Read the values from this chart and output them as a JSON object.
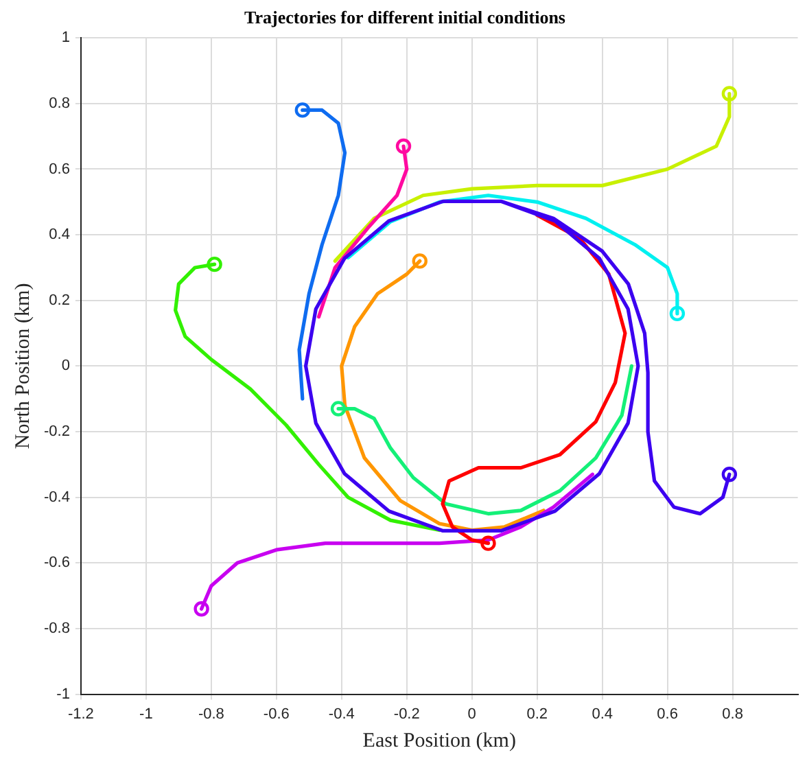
{
  "chart_data": {
    "type": "line",
    "title": "Trajectories for different initial conditions",
    "xlabel": "East Position (km)",
    "ylabel": "North Position (km)",
    "xlim": [
      -1.2,
      1
    ],
    "xticks": [
      -1.2,
      -1,
      -0.8,
      -0.6,
      -0.4,
      -0.2,
      0,
      0.2,
      0.4,
      0.6,
      0.8
    ],
    "ylim": [
      -1,
      1
    ],
    "yticks": [
      -1,
      -0.8,
      -0.6,
      -0.4,
      -0.2,
      0,
      0.2,
      0.4,
      0.6,
      0.8,
      1
    ],
    "grid": true,
    "line_style": "solid",
    "legend": false,
    "series": [
      {
        "color": "#32f000",
        "x": [
          -0.79,
          -0.85,
          -0.9,
          -0.91,
          -0.88,
          -0.8,
          -0.68,
          -0.57,
          -0.47,
          -0.38,
          -0.25,
          -0.1
        ],
        "values": [
          0.31,
          0.3,
          0.25,
          0.17,
          0.09,
          0.02,
          -0.07,
          -0.18,
          -0.3,
          -0.4,
          -0.47,
          -0.5
        ]
      },
      {
        "color": "#ff9600",
        "x": [
          -0.16,
          -0.2,
          -0.29,
          -0.36,
          -0.4,
          -0.39,
          -0.33,
          -0.22,
          -0.1,
          0,
          0.1,
          0.22
        ],
        "values": [
          0.32,
          0.28,
          0.22,
          0.12,
          0,
          -0.12,
          -0.28,
          -0.41,
          -0.48,
          -0.5,
          -0.49,
          -0.44
        ]
      },
      {
        "color": "#14f078",
        "x": [
          -0.41,
          -0.36,
          -0.3,
          -0.25,
          -0.18,
          -0.08,
          0.05,
          0.15,
          0.27,
          0.38,
          0.46,
          0.49
        ],
        "values": [
          -0.13,
          -0.13,
          -0.16,
          -0.25,
          -0.34,
          -0.42,
          -0.45,
          -0.44,
          -0.38,
          -0.28,
          -0.15,
          0
        ]
      },
      {
        "color": "#c800f0",
        "x": [
          -0.83,
          -0.8,
          -0.72,
          -0.6,
          -0.45,
          -0.3,
          -0.1,
          0.05,
          0.15,
          0.25,
          0.37
        ],
        "values": [
          -0.74,
          -0.67,
          -0.6,
          -0.56,
          -0.54,
          -0.54,
          -0.54,
          -0.53,
          -0.49,
          -0.43,
          -0.33
        ]
      },
      {
        "color": "#00f0f0",
        "x": [
          0.63,
          0.63,
          0.6,
          0.5,
          0.35,
          0.2,
          0.05,
          -0.1,
          -0.25,
          -0.38
        ],
        "values": [
          0.16,
          0.22,
          0.3,
          0.37,
          0.45,
          0.5,
          0.52,
          0.5,
          0.44,
          0.33
        ]
      },
      {
        "color": "#c8f000",
        "x": [
          0.79,
          0.79,
          0.75,
          0.6,
          0.4,
          0.2,
          0,
          -0.15,
          -0.3,
          -0.42
        ],
        "values": [
          0.83,
          0.76,
          0.67,
          0.6,
          0.55,
          0.55,
          0.54,
          0.52,
          0.45,
          0.32
        ]
      },
      {
        "color": "#ff0aa0",
        "x": [
          -0.21,
          -0.2,
          -0.23,
          -0.32,
          -0.42,
          -0.47
        ],
        "values": [
          0.67,
          0.6,
          0.52,
          0.42,
          0.3,
          0.15
        ]
      },
      {
        "color": "#0f6cf0",
        "x": [
          -0.52,
          -0.46,
          -0.41,
          -0.39,
          -0.41,
          -0.46,
          -0.5,
          -0.53,
          -0.52
        ],
        "values": [
          0.78,
          0.78,
          0.74,
          0.65,
          0.52,
          0.37,
          0.22,
          0.05,
          -0.1
        ]
      },
      {
        "color": "#ff0000",
        "x": [
          0.05,
          0,
          -0.06,
          -0.09,
          -0.07,
          0.02,
          0.15,
          0.27,
          0.38,
          0.44,
          0.47,
          0.42,
          0.33,
          0.2
        ],
        "values": [
          -0.54,
          -0.53,
          -0.49,
          -0.42,
          -0.35,
          -0.31,
          -0.31,
          -0.27,
          -0.17,
          -0.05,
          0.1,
          0.28,
          0.39,
          0.46
        ]
      },
      {
        "color": "#3c00f0",
        "x": [
          0.79,
          0.77,
          0.7,
          0.62,
          0.56,
          0.54,
          0.54,
          0.53,
          0.48,
          0.4,
          0.25,
          0.089,
          -0.089,
          -0.255,
          -0.391,
          -0.479,
          -0.51,
          -0.479,
          -0.391,
          -0.255,
          -0.089,
          0.089,
          0.255,
          0.391,
          0.479,
          0.51,
          0.479,
          0.391,
          0.255,
          0.089
        ],
        "values": [
          -0.33,
          -0.4,
          -0.45,
          -0.43,
          -0.35,
          -0.2,
          -0.02,
          0.1,
          0.25,
          0.35,
          0.45,
          0.502,
          0.502,
          0.442,
          0.328,
          0.174,
          0,
          -0.174,
          -0.328,
          -0.442,
          -0.502,
          -0.502,
          -0.442,
          -0.328,
          -0.174,
          0,
          0.174,
          0.328,
          0.442,
          0.502
        ]
      },
      {
        "type": "scatter",
        "marker": "circle",
        "color": "#32f000",
        "x": [
          -0.79
        ],
        "values": [
          0.31
        ]
      },
      {
        "type": "scatter",
        "marker": "circle",
        "color": "#ff9600",
        "x": [
          -0.16
        ],
        "values": [
          0.32
        ]
      },
      {
        "type": "scatter",
        "marker": "circle",
        "color": "#14f078",
        "x": [
          -0.41
        ],
        "values": [
          -0.13
        ]
      },
      {
        "type": "scatter",
        "marker": "circle",
        "color": "#c800f0",
        "x": [
          -0.83
        ],
        "values": [
          -0.74
        ]
      },
      {
        "type": "scatter",
        "marker": "circle",
        "color": "#00f0f0",
        "x": [
          0.63
        ],
        "values": [
          0.16
        ]
      },
      {
        "type": "scatter",
        "marker": "circle",
        "color": "#c8f000",
        "x": [
          0.79
        ],
        "values": [
          0.83
        ]
      },
      {
        "type": "scatter",
        "marker": "circle",
        "color": "#ff0aa0",
        "x": [
          -0.21
        ],
        "values": [
          0.67
        ]
      },
      {
        "type": "scatter",
        "marker": "circle",
        "color": "#0f6cf0",
        "x": [
          -0.52
        ],
        "values": [
          0.78
        ]
      },
      {
        "type": "scatter",
        "marker": "circle",
        "color": "#ff0000",
        "x": [
          0.05
        ],
        "values": [
          -0.54
        ]
      },
      {
        "type": "scatter",
        "marker": "circle",
        "color": "#3c00f0",
        "x": [
          0.79
        ],
        "values": [
          -0.33
        ]
      }
    ]
  }
}
